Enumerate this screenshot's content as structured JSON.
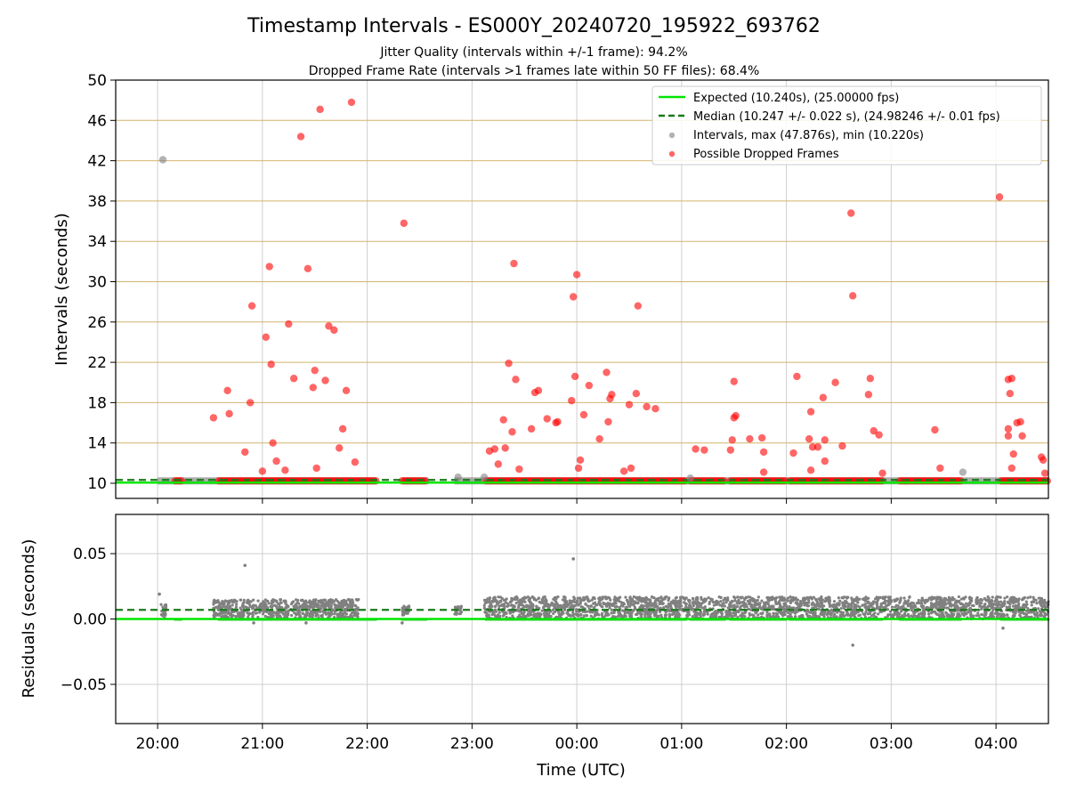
{
  "chart_data": [
    {
      "type": "scatter",
      "title": "Timestamp Intervals - ES000Y_20240720_195922_693762",
      "subtitles": [
        "Jitter Quality (intervals within +/-1 frame): 94.2%",
        "Dropped Frame Rate (intervals >1 frames late within 50 FF files): 68.4%"
      ],
      "xlabel": "",
      "ylabel": "Intervals (seconds)",
      "ylim": [
        8.5,
        50
      ],
      "yticks": [
        "10",
        "14",
        "18",
        "22",
        "26",
        "30",
        "34",
        "38",
        "42",
        "46",
        "50"
      ],
      "x_is_time_utc": true,
      "xlim": [
        "2024-07-20 19:36",
        "2024-07-21 04:30"
      ],
      "grid": true,
      "legend_position": "top-right",
      "legend": [
        "Expected (10.240s), (25.00000 fps)",
        "Median (10.247 +/- 0.022 s), (24.98246 +/- 0.01 fps)",
        "Intervals, max (47.876s), min (10.220s)",
        "Possible Dropped Frames"
      ],
      "colors": {
        "expected": "#00e600",
        "median": "#1a7a1a",
        "intervals": "#808080",
        "dropped": "#ff0000",
        "ygrid": "#d2b46e"
      },
      "expected_interval": 10.24,
      "median_interval": 10.247,
      "baseline_segments": [
        {
          "from": "2024-07-20 20:00",
          "to": "2024-07-20 22:05"
        },
        {
          "from": "2024-07-20 22:20",
          "to": "2024-07-20 22:35"
        },
        {
          "from": "2024-07-20 22:50",
          "to": "2024-07-21 04:30"
        }
      ],
      "dropped_dense_segments": [
        {
          "from": "2024-07-20 20:10",
          "to": "2024-07-20 20:14"
        },
        {
          "from": "2024-07-20 20:35",
          "to": "2024-07-20 22:05"
        },
        {
          "from": "2024-07-20 22:20",
          "to": "2024-07-20 22:34"
        },
        {
          "from": "2024-07-20 23:08",
          "to": "2024-07-21 01:03"
        },
        {
          "from": "2024-07-21 01:05",
          "to": "2024-07-21 01:25"
        },
        {
          "from": "2024-07-21 01:28",
          "to": "2024-07-21 02:00"
        },
        {
          "from": "2024-07-21 02:02",
          "to": "2024-07-21 02:55"
        },
        {
          "from": "2024-07-21 03:05",
          "to": "2024-07-21 03:40"
        },
        {
          "from": "2024-07-21 04:03",
          "to": "2024-07-21 04:30"
        }
      ],
      "intervals_outliers": [
        {
          "x": "2024-07-20 20:03",
          "y": 42.1
        },
        {
          "x": "2024-07-20 22:52",
          "y": 10.6
        },
        {
          "x": "2024-07-20 23:07",
          "y": 10.6
        },
        {
          "x": "2024-07-21 01:05",
          "y": 10.5
        },
        {
          "x": "2024-07-21 03:41",
          "y": 11.1
        }
      ],
      "dropped_points": [
        {
          "x": "2024-07-20 20:32",
          "y": 16.5
        },
        {
          "x": "2024-07-20 20:40",
          "y": 19.2
        },
        {
          "x": "2024-07-20 20:41",
          "y": 16.9
        },
        {
          "x": "2024-07-20 20:50",
          "y": 13.1
        },
        {
          "x": "2024-07-20 20:53",
          "y": 18.0
        },
        {
          "x": "2024-07-20 20:54",
          "y": 27.6
        },
        {
          "x": "2024-07-20 21:00",
          "y": 11.2
        },
        {
          "x": "2024-07-20 21:02",
          "y": 24.5
        },
        {
          "x": "2024-07-20 21:04",
          "y": 31.5
        },
        {
          "x": "2024-07-20 21:05",
          "y": 21.8
        },
        {
          "x": "2024-07-20 21:06",
          "y": 14.0
        },
        {
          "x": "2024-07-20 21:08",
          "y": 12.2
        },
        {
          "x": "2024-07-20 21:13",
          "y": 11.3
        },
        {
          "x": "2024-07-20 21:15",
          "y": 25.8
        },
        {
          "x": "2024-07-20 21:18",
          "y": 20.4
        },
        {
          "x": "2024-07-20 21:22",
          "y": 44.4
        },
        {
          "x": "2024-07-20 21:26",
          "y": 31.3
        },
        {
          "x": "2024-07-20 21:29",
          "y": 19.5
        },
        {
          "x": "2024-07-20 21:30",
          "y": 21.2
        },
        {
          "x": "2024-07-20 21:31",
          "y": 11.5
        },
        {
          "x": "2024-07-20 21:33",
          "y": 47.1
        },
        {
          "x": "2024-07-20 21:36",
          "y": 20.2
        },
        {
          "x": "2024-07-20 21:38",
          "y": 25.6
        },
        {
          "x": "2024-07-20 21:41",
          "y": 25.2
        },
        {
          "x": "2024-07-20 21:44",
          "y": 13.5
        },
        {
          "x": "2024-07-20 21:46",
          "y": 15.4
        },
        {
          "x": "2024-07-20 21:48",
          "y": 19.2
        },
        {
          "x": "2024-07-20 21:51",
          "y": 47.8
        },
        {
          "x": "2024-07-20 21:53",
          "y": 12.1
        },
        {
          "x": "2024-07-20 22:21",
          "y": 35.8
        },
        {
          "x": "2024-07-20 23:10",
          "y": 13.2
        },
        {
          "x": "2024-07-20 23:13",
          "y": 13.4
        },
        {
          "x": "2024-07-20 23:15",
          "y": 11.9
        },
        {
          "x": "2024-07-20 23:18",
          "y": 16.3
        },
        {
          "x": "2024-07-20 23:19",
          "y": 13.5
        },
        {
          "x": "2024-07-20 23:21",
          "y": 21.9
        },
        {
          "x": "2024-07-20 23:23",
          "y": 15.1
        },
        {
          "x": "2024-07-20 23:24",
          "y": 31.8
        },
        {
          "x": "2024-07-20 23:25",
          "y": 20.3
        },
        {
          "x": "2024-07-20 23:27",
          "y": 11.4
        },
        {
          "x": "2024-07-20 23:34",
          "y": 15.4
        },
        {
          "x": "2024-07-20 23:36",
          "y": 19.0
        },
        {
          "x": "2024-07-20 23:38",
          "y": 19.2
        },
        {
          "x": "2024-07-20 23:43",
          "y": 16.4
        },
        {
          "x": "2024-07-20 23:48",
          "y": 16.0
        },
        {
          "x": "2024-07-20 23:49",
          "y": 16.1
        },
        {
          "x": "2024-07-20 23:57",
          "y": 18.2
        },
        {
          "x": "2024-07-20 23:58",
          "y": 28.5
        },
        {
          "x": "2024-07-20 23:59",
          "y": 20.6
        },
        {
          "x": "2024-07-21 00:00",
          "y": 30.7
        },
        {
          "x": "2024-07-21 00:01",
          "y": 11.5
        },
        {
          "x": "2024-07-21 00:02",
          "y": 12.3
        },
        {
          "x": "2024-07-21 00:04",
          "y": 16.8
        },
        {
          "x": "2024-07-21 00:07",
          "y": 19.7
        },
        {
          "x": "2024-07-21 00:13",
          "y": 14.4
        },
        {
          "x": "2024-07-21 00:17",
          "y": 21.0
        },
        {
          "x": "2024-07-21 00:18",
          "y": 16.1
        },
        {
          "x": "2024-07-21 00:19",
          "y": 18.4
        },
        {
          "x": "2024-07-21 00:20",
          "y": 18.8
        },
        {
          "x": "2024-07-21 00:27",
          "y": 11.2
        },
        {
          "x": "2024-07-21 00:30",
          "y": 17.8
        },
        {
          "x": "2024-07-21 00:31",
          "y": 11.5
        },
        {
          "x": "2024-07-21 00:34",
          "y": 18.9
        },
        {
          "x": "2024-07-21 00:35",
          "y": 27.6
        },
        {
          "x": "2024-07-21 00:40",
          "y": 17.6
        },
        {
          "x": "2024-07-21 00:45",
          "y": 17.4
        },
        {
          "x": "2024-07-21 01:08",
          "y": 13.4
        },
        {
          "x": "2024-07-21 01:13",
          "y": 13.3
        },
        {
          "x": "2024-07-21 01:28",
          "y": 13.3
        },
        {
          "x": "2024-07-21 01:29",
          "y": 14.3
        },
        {
          "x": "2024-07-21 01:30",
          "y": 16.5
        },
        {
          "x": "2024-07-21 01:31",
          "y": 16.7
        },
        {
          "x": "2024-07-21 01:30",
          "y": 20.1
        },
        {
          "x": "2024-07-21 01:39",
          "y": 14.4
        },
        {
          "x": "2024-07-21 01:46",
          "y": 14.5
        },
        {
          "x": "2024-07-21 01:47",
          "y": 13.1
        },
        {
          "x": "2024-07-21 01:47",
          "y": 11.1
        },
        {
          "x": "2024-07-21 02:04",
          "y": 13.0
        },
        {
          "x": "2024-07-21 02:06",
          "y": 20.6
        },
        {
          "x": "2024-07-21 02:13",
          "y": 14.4
        },
        {
          "x": "2024-07-21 02:14",
          "y": 17.1
        },
        {
          "x": "2024-07-21 02:15",
          "y": 13.6
        },
        {
          "x": "2024-07-21 02:14",
          "y": 11.3
        },
        {
          "x": "2024-07-21 02:18",
          "y": 13.6
        },
        {
          "x": "2024-07-21 02:21",
          "y": 18.5
        },
        {
          "x": "2024-07-21 02:22",
          "y": 14.3
        },
        {
          "x": "2024-07-21 02:22",
          "y": 12.2
        },
        {
          "x": "2024-07-21 02:28",
          "y": 20.0
        },
        {
          "x": "2024-07-21 02:32",
          "y": 13.7
        },
        {
          "x": "2024-07-21 02:37",
          "y": 36.8
        },
        {
          "x": "2024-07-21 02:38",
          "y": 28.6
        },
        {
          "x": "2024-07-21 02:48",
          "y": 20.4
        },
        {
          "x": "2024-07-21 02:47",
          "y": 18.8
        },
        {
          "x": "2024-07-21 02:50",
          "y": 15.2
        },
        {
          "x": "2024-07-21 02:53",
          "y": 14.8
        },
        {
          "x": "2024-07-21 02:55",
          "y": 11.0
        },
        {
          "x": "2024-07-21 03:25",
          "y": 15.3
        },
        {
          "x": "2024-07-21 03:28",
          "y": 11.5
        },
        {
          "x": "2024-07-21 04:02",
          "y": 38.4
        },
        {
          "x": "2024-07-21 04:07",
          "y": 20.3
        },
        {
          "x": "2024-07-21 04:09",
          "y": 20.4
        },
        {
          "x": "2024-07-21 04:08",
          "y": 18.9
        },
        {
          "x": "2024-07-21 04:07",
          "y": 15.4
        },
        {
          "x": "2024-07-21 04:07",
          "y": 14.7
        },
        {
          "x": "2024-07-21 04:09",
          "y": 11.5
        },
        {
          "x": "2024-07-21 04:10",
          "y": 12.9
        },
        {
          "x": "2024-07-21 04:12",
          "y": 16.0
        },
        {
          "x": "2024-07-21 04:14",
          "y": 16.1
        },
        {
          "x": "2024-07-21 04:15",
          "y": 14.7
        },
        {
          "x": "2024-07-21 04:26",
          "y": 12.6
        },
        {
          "x": "2024-07-21 04:27",
          "y": 12.3
        },
        {
          "x": "2024-07-21 04:28",
          "y": 11.0
        }
      ]
    },
    {
      "type": "scatter",
      "title": "",
      "xlabel": "Time (UTC)",
      "ylabel": "Residuals (seconds)",
      "ylim": [
        -0.08,
        0.08
      ],
      "yticks": [
        "−0.05",
        "0.00",
        "0.05"
      ],
      "xticks": [
        "20:00",
        "21:00",
        "22:00",
        "23:00",
        "00:00",
        "01:00",
        "02:00",
        "03:00",
        "04:00"
      ],
      "xlim": [
        "2024-07-20 19:36",
        "2024-07-21 04:30"
      ],
      "grid": true,
      "expected_residual": 0.0,
      "median_residual": 0.007,
      "residual_clusters": [
        {
          "from": "2024-07-20 20:02",
          "to": "2024-07-20 20:05",
          "low": 0.0,
          "high": 0.012
        },
        {
          "from": "2024-07-20 20:32",
          "to": "2024-07-20 21:55",
          "low": 0.001,
          "high": 0.015
        },
        {
          "from": "2024-07-20 22:20",
          "to": "2024-07-20 22:24",
          "low": 0.003,
          "high": 0.01
        },
        {
          "from": "2024-07-20 22:50",
          "to": "2024-07-20 22:54",
          "low": 0.003,
          "high": 0.01
        },
        {
          "from": "2024-07-20 23:07",
          "to": "2024-07-21 04:30",
          "low": 0.0,
          "high": 0.017
        }
      ],
      "residual_outliers": [
        {
          "x": "2024-07-20 20:01",
          "y": 0.019
        },
        {
          "x": "2024-07-20 20:50",
          "y": 0.041
        },
        {
          "x": "2024-07-20 20:55",
          "y": -0.003
        },
        {
          "x": "2024-07-20 21:25",
          "y": -0.003
        },
        {
          "x": "2024-07-20 22:20",
          "y": -0.003
        },
        {
          "x": "2024-07-20 23:58",
          "y": 0.046
        },
        {
          "x": "2024-07-21 02:38",
          "y": -0.02
        },
        {
          "x": "2024-07-21 04:04",
          "y": -0.007
        }
      ]
    }
  ]
}
